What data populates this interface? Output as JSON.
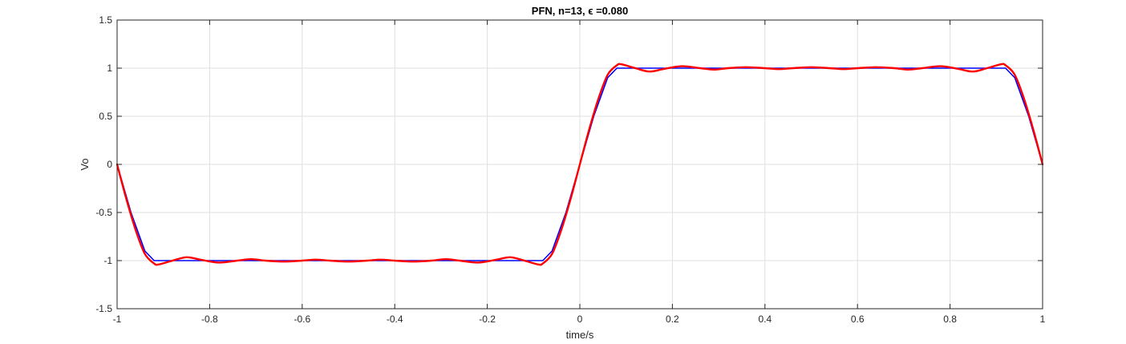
{
  "chart_data": {
    "type": "line",
    "title": "PFN, n=13, ϵ =0.080",
    "xlabel": "time/s",
    "ylabel": "Vo",
    "xlim": [
      -1,
      1
    ],
    "ylim": [
      -1.5,
      1.5
    ],
    "xticks": [
      -1,
      -0.8,
      -0.6,
      -0.4,
      -0.2,
      0,
      0.2,
      0.4,
      0.6,
      0.8,
      1
    ],
    "yticks": [
      -1.5,
      -1,
      -0.5,
      0,
      0.5,
      1,
      1.5
    ],
    "xtick_labels": [
      "-1",
      "-0.8",
      "-0.6",
      "-0.4",
      "-0.2",
      "0",
      "0.2",
      "0.4",
      "0.6",
      "0.8",
      "1"
    ],
    "ytick_labels": [
      "-1.5",
      "-1",
      "-0.5",
      "0",
      "0.5",
      "1",
      "1.5"
    ],
    "grid": true,
    "series": [
      {
        "color": "#0000ff",
        "x": [
          -1,
          -0.97,
          -0.94,
          -0.92,
          -0.08,
          -0.06,
          -0.03,
          0,
          0.03,
          0.06,
          0.08,
          0.92,
          0.94,
          0.97,
          1
        ],
        "y": [
          0,
          -0.5,
          -0.9,
          -1,
          -1,
          -0.9,
          -0.5,
          0,
          0.5,
          0.9,
          1,
          1,
          0.9,
          0.5,
          0
        ]
      },
      {
        "color": "#ff0000",
        "x": [
          -1,
          -0.98,
          -0.96,
          -0.94,
          -0.92,
          -0.91,
          -0.88,
          -0.85,
          -0.82,
          -0.78,
          -0.74,
          -0.71,
          -0.68,
          -0.64,
          -0.6,
          -0.57,
          -0.54,
          -0.5,
          -0.46,
          -0.43,
          -0.4,
          -0.36,
          -0.32,
          -0.29,
          -0.26,
          -0.22,
          -0.18,
          -0.15,
          -0.12,
          -0.09,
          -0.08,
          -0.06,
          -0.04,
          -0.02,
          0,
          0.02,
          0.04,
          0.06,
          0.08,
          0.09,
          0.12,
          0.15,
          0.18,
          0.22,
          0.26,
          0.29,
          0.32,
          0.36,
          0.4,
          0.43,
          0.46,
          0.5,
          0.54,
          0.57,
          0.6,
          0.64,
          0.68,
          0.71,
          0.74,
          0.78,
          0.82,
          0.85,
          0.88,
          0.91,
          0.92,
          0.94,
          0.96,
          0.98,
          1
        ],
        "y": [
          0,
          -0.36,
          -0.68,
          -0.93,
          -1.03,
          -1.04,
          -1.0,
          -0.965,
          -0.99,
          -1.02,
          -1.0,
          -0.985,
          -1.0,
          -1.01,
          -1.0,
          -0.99,
          -1.0,
          -1.01,
          -1.0,
          -0.99,
          -1.0,
          -1.01,
          -1.0,
          -0.985,
          -1.0,
          -1.02,
          -0.99,
          -0.965,
          -1.0,
          -1.04,
          -1.03,
          -0.93,
          -0.68,
          -0.36,
          0,
          0.36,
          0.68,
          0.93,
          1.03,
          1.04,
          1.0,
          0.965,
          0.99,
          1.02,
          1.0,
          0.985,
          1.0,
          1.01,
          1.0,
          0.99,
          1.0,
          1.01,
          1.0,
          0.99,
          1.0,
          1.01,
          1.0,
          0.985,
          1.0,
          1.02,
          0.99,
          0.965,
          1.0,
          1.04,
          1.03,
          0.93,
          0.68,
          0.36,
          0
        ]
      }
    ]
  }
}
